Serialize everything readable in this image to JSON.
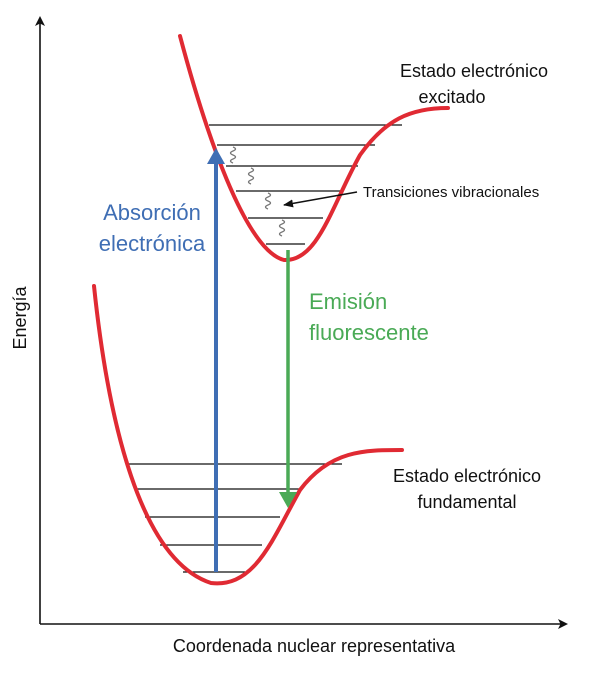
{
  "axes": {
    "y_label": "Energía",
    "x_label": "Coordenada nuclear representativa"
  },
  "excited_state": {
    "label_line1": "Estado electrónico",
    "label_line2": "excitado"
  },
  "ground_state": {
    "label_line1": "Estado electrónico",
    "label_line2": "fundamental"
  },
  "absorption": {
    "label_line1": "Absorción",
    "label_line2": "electrónica"
  },
  "emission": {
    "label_line1": "Emisión",
    "label_line2": "fluorescente"
  },
  "vibrational_transitions": {
    "label": "Transiciones vibracionales"
  },
  "colors": {
    "curve": "#e02a33",
    "absorption_arrow": "#3f6eb4",
    "emission_arrow": "#4aaa56",
    "levels": "#111111",
    "squiggle": "#777777"
  }
}
